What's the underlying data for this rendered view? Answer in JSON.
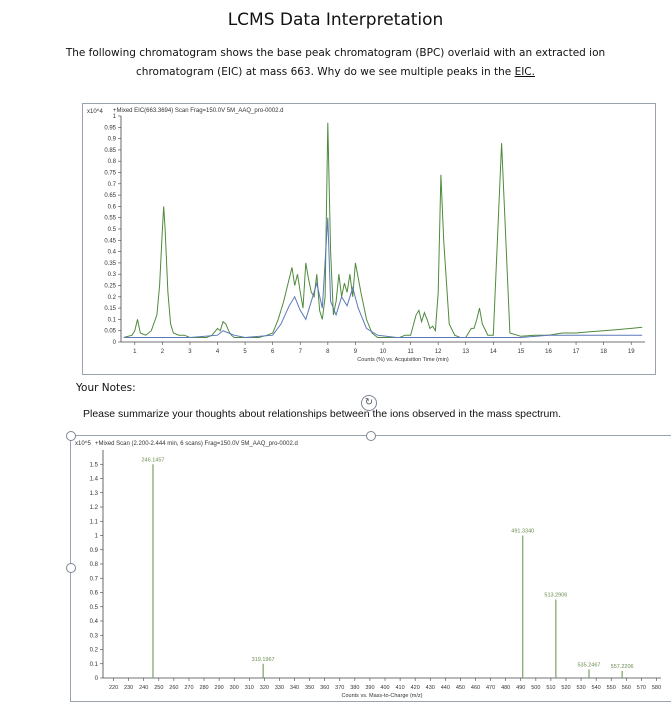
{
  "page": {
    "title": "LCMS Data Interpretation",
    "intro_line1": "The following chromatogram shows the base peak chromatogram (BPC) overlaid with an extracted ion",
    "intro_line2_pre": "chromatogram (EIC) at mass 663. Why do we see multiple peaks in the ",
    "intro_line2_link": "EIC.",
    "notes_label": "Your Notes:",
    "prompt": "Please summarize your thoughts about relationships between the ions observed in the mass spectrum."
  },
  "chart_data": [
    {
      "type": "line",
      "header": "+Mixed EIC(663.3694) Scan Frag=150.0V 5M_AAQ_pro-0002.d",
      "multiplier": "x10^4",
      "xlabel": "Counts (%) vs. Acquisition Time (min)",
      "xlim": [
        0.5,
        19.5
      ],
      "ylim": [
        0,
        1
      ],
      "x_ticks": [
        1,
        2,
        3,
        4,
        5,
        6,
        7,
        8,
        9,
        10,
        11,
        12,
        13,
        14,
        15,
        16,
        17,
        18,
        19
      ],
      "y_ticks": [
        "0",
        "0.05",
        "0.1",
        "0.15",
        "0.2",
        "0.25",
        "0.3",
        "0.35",
        "0.4",
        "0.45",
        "0.5",
        "0.55",
        "0.6",
        "0.65",
        "0.7",
        "0.75",
        "0.8",
        "0.85",
        "0.9",
        "0.95",
        "1"
      ],
      "colors": {
        "bpc": "#4f8a3c",
        "eic": "#5b78b8"
      },
      "series": [
        {
          "key": "bpc",
          "x": [
            0.6,
            0.9,
            1.0,
            1.1,
            1.2,
            1.4,
            1.6,
            1.8,
            1.9,
            2.0,
            2.05,
            2.1,
            2.2,
            2.3,
            2.4,
            2.6,
            2.8,
            3.0,
            3.2,
            3.4,
            3.6,
            3.8,
            4.0,
            4.1,
            4.2,
            4.3,
            4.4,
            4.5,
            4.6,
            4.8,
            5.0,
            5.2,
            5.5,
            5.8,
            6.0,
            6.2,
            6.4,
            6.6,
            6.7,
            6.8,
            6.9,
            7.0,
            7.1,
            7.2,
            7.3,
            7.4,
            7.5,
            7.6,
            7.7,
            7.8,
            7.9,
            8.0,
            8.1,
            8.2,
            8.3,
            8.4,
            8.5,
            8.6,
            8.7,
            8.8,
            8.9,
            9.0,
            9.2,
            9.4,
            9.6,
            9.8,
            10.0,
            10.2,
            10.4,
            10.6,
            10.8,
            11.0,
            11.2,
            11.3,
            11.4,
            11.5,
            11.6,
            11.7,
            11.8,
            11.9,
            12.0,
            12.1,
            12.2,
            12.4,
            12.6,
            12.8,
            13.0,
            13.1,
            13.2,
            13.3,
            13.4,
            13.5,
            13.6,
            13.8,
            14.0,
            14.3,
            14.6,
            15.0,
            15.5,
            16.0,
            16.5,
            17.0,
            17.5,
            18.0,
            18.5,
            19.0,
            19.4
          ],
          "y": [
            0.02,
            0.03,
            0.05,
            0.1,
            0.04,
            0.03,
            0.05,
            0.12,
            0.25,
            0.5,
            0.6,
            0.5,
            0.22,
            0.08,
            0.04,
            0.03,
            0.03,
            0.02,
            0.02,
            0.02,
            0.02,
            0.03,
            0.06,
            0.05,
            0.09,
            0.08,
            0.05,
            0.03,
            0.02,
            0.02,
            0.02,
            0.02,
            0.02,
            0.03,
            0.04,
            0.1,
            0.18,
            0.28,
            0.33,
            0.25,
            0.3,
            0.22,
            0.15,
            0.35,
            0.28,
            0.22,
            0.2,
            0.3,
            0.14,
            0.1,
            0.2,
            0.97,
            0.4,
            0.12,
            0.18,
            0.3,
            0.2,
            0.26,
            0.22,
            0.3,
            0.2,
            0.35,
            0.22,
            0.1,
            0.04,
            0.02,
            0.02,
            0.02,
            0.02,
            0.02,
            0.03,
            0.03,
            0.12,
            0.14,
            0.09,
            0.13,
            0.1,
            0.06,
            0.07,
            0.05,
            0.22,
            0.74,
            0.45,
            0.08,
            0.03,
            0.02,
            0.02,
            0.04,
            0.06,
            0.06,
            0.1,
            0.15,
            0.08,
            0.03,
            0.03,
            0.88,
            0.04,
            0.025,
            0.03,
            0.03,
            0.04,
            0.04,
            0.045,
            0.05,
            0.055,
            0.06,
            0.065
          ]
        },
        {
          "key": "eic",
          "x": [
            0.6,
            1.0,
            2.0,
            3.0,
            4.0,
            4.2,
            4.4,
            4.6,
            5.0,
            6.0,
            6.3,
            6.6,
            6.8,
            7.0,
            7.2,
            7.4,
            7.6,
            7.8,
            8.0,
            8.1,
            8.3,
            8.5,
            8.7,
            8.9,
            9.1,
            9.4,
            9.8,
            10.5,
            11.5,
            12.5,
            13.5,
            14.5,
            15.0,
            16.0,
            17.0,
            18.0,
            19.4
          ],
          "y": [
            0.02,
            0.02,
            0.02,
            0.02,
            0.03,
            0.05,
            0.04,
            0.03,
            0.02,
            0.03,
            0.08,
            0.16,
            0.2,
            0.14,
            0.1,
            0.18,
            0.26,
            0.15,
            0.55,
            0.18,
            0.12,
            0.2,
            0.16,
            0.24,
            0.15,
            0.06,
            0.03,
            0.02,
            0.02,
            0.02,
            0.02,
            0.02,
            0.02,
            0.03,
            0.03,
            0.03,
            0.03
          ]
        }
      ]
    },
    {
      "type": "bar",
      "header": "+Mixed Scan (2.200-2.444 min, 6 scans) Frag=150.0V 5M_AAQ_pro-0002.d",
      "multiplier": "x10^5",
      "xlabel": "Counts vs. Mass-to-Charge (m/z)",
      "xlim": [
        213,
        583
      ],
      "ylim": [
        0,
        1.6
      ],
      "x_ticks": [
        220,
        230,
        240,
        250,
        260,
        270,
        280,
        290,
        300,
        310,
        320,
        330,
        340,
        350,
        360,
        370,
        380,
        390,
        400,
        410,
        420,
        430,
        440,
        450,
        460,
        470,
        480,
        490,
        500,
        510,
        520,
        530,
        540,
        550,
        560,
        570,
        580
      ],
      "y_ticks": [
        "0",
        "0.1",
        "0.2",
        "0.3",
        "0.4",
        "0.5",
        "0.6",
        "0.7",
        "0.8",
        "0.9",
        "1",
        "1.1",
        "1.2",
        "1.3",
        "1.4",
        "1.5"
      ],
      "colors": {
        "bars": "#6a9a5a"
      },
      "peaks": [
        {
          "mz": 246.1457,
          "label": "246.1457",
          "y": 1.5
        },
        {
          "mz": 319.1967,
          "label": "319.1967",
          "y": 0.1
        },
        {
          "mz": 491.334,
          "label": "491.3340",
          "y": 1.0
        },
        {
          "mz": 513.2906,
          "label": "513.2906",
          "y": 0.55
        },
        {
          "mz": 535.2467,
          "label": "535.2467",
          "y": 0.06
        },
        {
          "mz": 557.2206,
          "label": "557.2206",
          "y": 0.05
        }
      ]
    }
  ]
}
